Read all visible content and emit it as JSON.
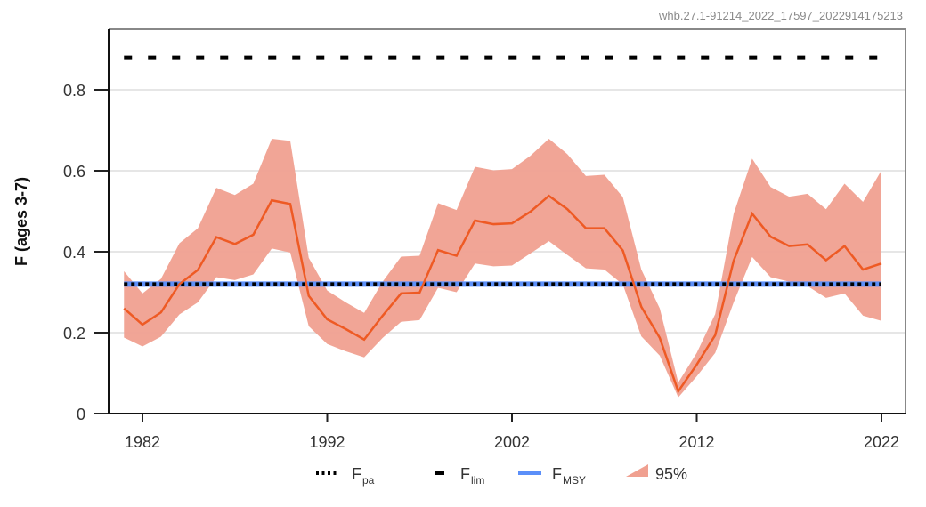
{
  "watermark": "whb.27.1-91214_2022_17597_2022914175213",
  "chart_data": {
    "type": "line",
    "title": "",
    "xlabel": "",
    "ylabel": "F (ages 3-7)",
    "xlim": [
      1981,
      2022
    ],
    "ylim": [
      0,
      0.9
    ],
    "x_ticks": [
      1982,
      1992,
      2002,
      2012,
      2022
    ],
    "y_ticks": [
      0,
      0.2,
      0.4,
      0.6,
      0.8
    ],
    "y_tick_labels": [
      "0",
      "0.2",
      "0.4",
      "0.6",
      "0.8"
    ],
    "grid": "horizontal",
    "legend_placement": "bottom",
    "years": [
      1981,
      1982,
      1983,
      1984,
      1985,
      1986,
      1987,
      1988,
      1989,
      1990,
      1991,
      1992,
      1993,
      1994,
      1995,
      1996,
      1997,
      1998,
      1999,
      2000,
      2001,
      2002,
      2003,
      2004,
      2005,
      2006,
      2007,
      2008,
      2009,
      2010,
      2011,
      2012,
      2013,
      2014,
      2015,
      2016,
      2017,
      2018,
      2019,
      2020,
      2021,
      2022
    ],
    "F": [
      0.26,
      0.22,
      0.25,
      0.32,
      0.355,
      0.436,
      0.419,
      0.442,
      0.527,
      0.518,
      0.291,
      0.233,
      0.209,
      0.183,
      0.242,
      0.297,
      0.299,
      0.404,
      0.39,
      0.477,
      0.468,
      0.47,
      0.499,
      0.538,
      0.505,
      0.458,
      0.458,
      0.403,
      0.264,
      0.187,
      0.055,
      0.121,
      0.194,
      0.378,
      0.494,
      0.437,
      0.414,
      0.418,
      0.379,
      0.414,
      0.356,
      0.371
    ],
    "upper95": [
      0.352,
      0.297,
      0.333,
      0.421,
      0.458,
      0.558,
      0.54,
      0.568,
      0.679,
      0.674,
      0.385,
      0.304,
      0.275,
      0.249,
      0.326,
      0.388,
      0.39,
      0.52,
      0.503,
      0.61,
      0.601,
      0.604,
      0.637,
      0.679,
      0.641,
      0.587,
      0.59,
      0.535,
      0.356,
      0.26,
      0.077,
      0.15,
      0.246,
      0.494,
      0.63,
      0.56,
      0.536,
      0.543,
      0.505,
      0.568,
      0.523,
      0.601
    ],
    "lower95": [
      0.188,
      0.166,
      0.19,
      0.245,
      0.275,
      0.337,
      0.33,
      0.344,
      0.408,
      0.398,
      0.216,
      0.172,
      0.154,
      0.139,
      0.187,
      0.227,
      0.231,
      0.311,
      0.3,
      0.371,
      0.364,
      0.366,
      0.396,
      0.426,
      0.392,
      0.359,
      0.356,
      0.319,
      0.191,
      0.143,
      0.04,
      0.092,
      0.15,
      0.275,
      0.387,
      0.337,
      0.326,
      0.315,
      0.286,
      0.297,
      0.242,
      0.229
    ],
    "reference_lines": {
      "Fpa": 0.32,
      "Flim": 0.88,
      "FMSY": 0.32
    },
    "legend": [
      {
        "label": "F",
        "sub": "pa",
        "style": "dotted",
        "color": "#000000"
      },
      {
        "label": "F",
        "sub": "lim",
        "style": "dashed",
        "color": "#000000"
      },
      {
        "label": "F",
        "sub": "MSY",
        "style": "solid",
        "color": "#5b8ff9"
      },
      {
        "label": "95%",
        "sub": "",
        "style": "area",
        "color": "#f0a090"
      }
    ],
    "colors": {
      "line": "#ee5a24",
      "band": "#f0a090",
      "fmsy": "#5b8ff9",
      "ref": "#000000",
      "grid": "#dddddd"
    }
  }
}
